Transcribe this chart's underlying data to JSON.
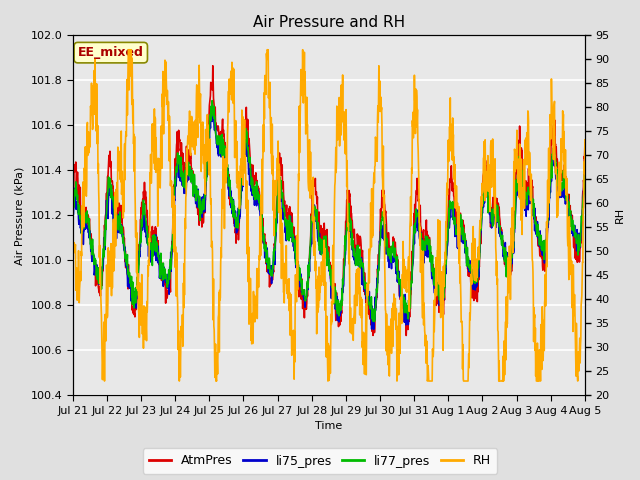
{
  "title": "Air Pressure and RH",
  "xlabel": "Time",
  "ylabel_left": "Air Pressure (kPa)",
  "ylabel_right": "RH",
  "annotation": "EE_mixed",
  "ylim_left": [
    100.4,
    102.0
  ],
  "ylim_right": [
    20,
    95
  ],
  "yticks_left": [
    100.4,
    100.6,
    100.8,
    101.0,
    101.2,
    101.4,
    101.6,
    101.8,
    102.0
  ],
  "yticks_right": [
    20,
    25,
    30,
    35,
    40,
    45,
    50,
    55,
    60,
    65,
    70,
    75,
    80,
    85,
    90,
    95
  ],
  "colors": {
    "AtmPres": "#dd0000",
    "li75_pres": "#0000cc",
    "li77_pres": "#00bb00",
    "RH": "#ffaa00"
  },
  "line_widths": {
    "AtmPres": 1.2,
    "li75_pres": 1.2,
    "li77_pres": 1.2,
    "RH": 1.2
  },
  "fig_bg_color": "#e0e0e0",
  "plot_bg": "#e8e8e8",
  "annotation_bg": "#ffffcc",
  "annotation_border": "#888800",
  "annotation_text_color": "#aa0000",
  "grid_color": "#ffffff",
  "xtick_labels": [
    "Jul 21",
    "Jul 22",
    "Jul 23",
    "Jul 24",
    "Jul 25",
    "Jul 26",
    "Jul 27",
    "Jul 28",
    "Jul 29",
    "Jul 30",
    "Jul 31",
    "Aug 1",
    "Aug 2",
    "Aug 3",
    "Aug 4",
    "Aug 5"
  ],
  "title_fontsize": 11,
  "label_fontsize": 8,
  "tick_fontsize": 8,
  "legend_fontsize": 9,
  "annotation_fontsize": 9
}
